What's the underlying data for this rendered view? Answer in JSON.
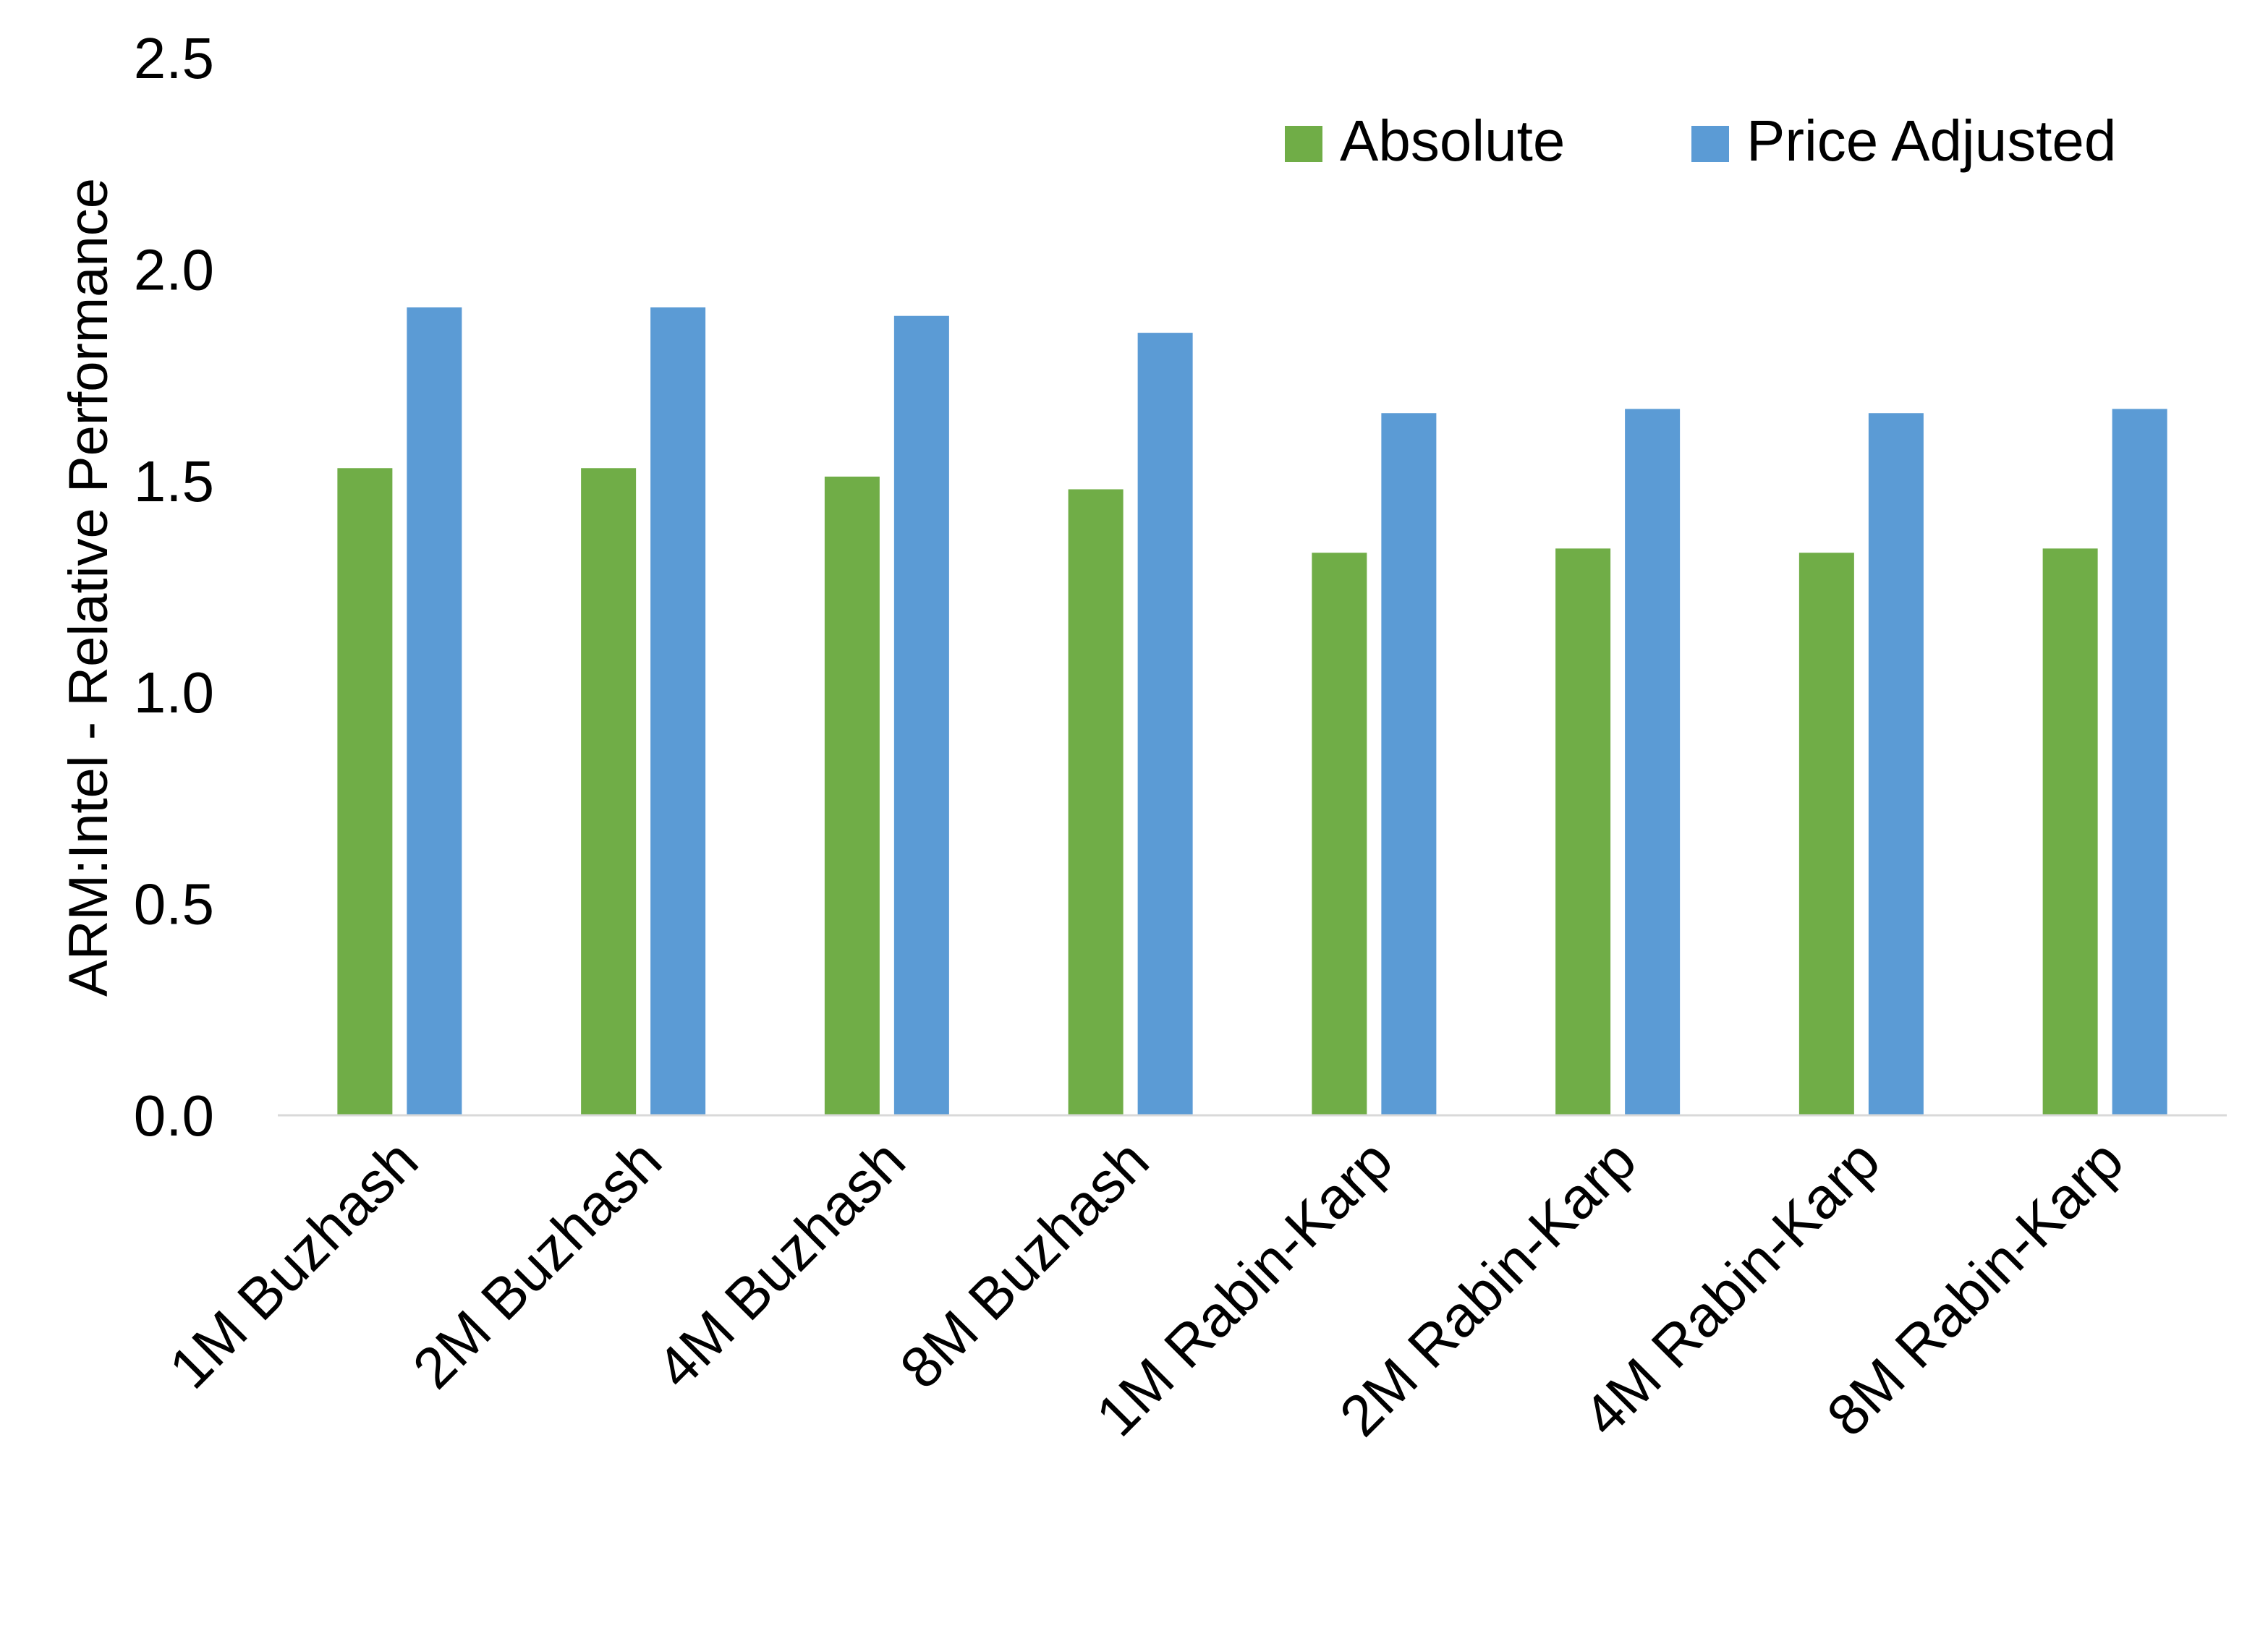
{
  "chart_data": {
    "type": "bar",
    "title": "",
    "xlabel": "",
    "ylabel": "ARM:Intel - Relative Performance",
    "ylim": [
      0,
      2.5
    ],
    "yticks": [
      "0.0",
      "0.5",
      "1.0",
      "1.5",
      "2.0",
      "2.5"
    ],
    "grid": false,
    "legend_position": "top-right",
    "categories": [
      "1M Buzhash",
      "2M Buzhash",
      "4M Buzhash",
      "8M Buzhash",
      "1M Rabin-Karp",
      "2M Rabin-Karp",
      "4M Rabin-Karp",
      "8M Rabin-Karp"
    ],
    "series": [
      {
        "name": "Absolute",
        "color": "#70AD47",
        "values": [
          1.53,
          1.53,
          1.51,
          1.48,
          1.33,
          1.34,
          1.33,
          1.34
        ]
      },
      {
        "name": "Price Adjusted",
        "color": "#5B9BD5",
        "values": [
          1.91,
          1.91,
          1.89,
          1.85,
          1.66,
          1.67,
          1.66,
          1.67
        ]
      }
    ]
  }
}
